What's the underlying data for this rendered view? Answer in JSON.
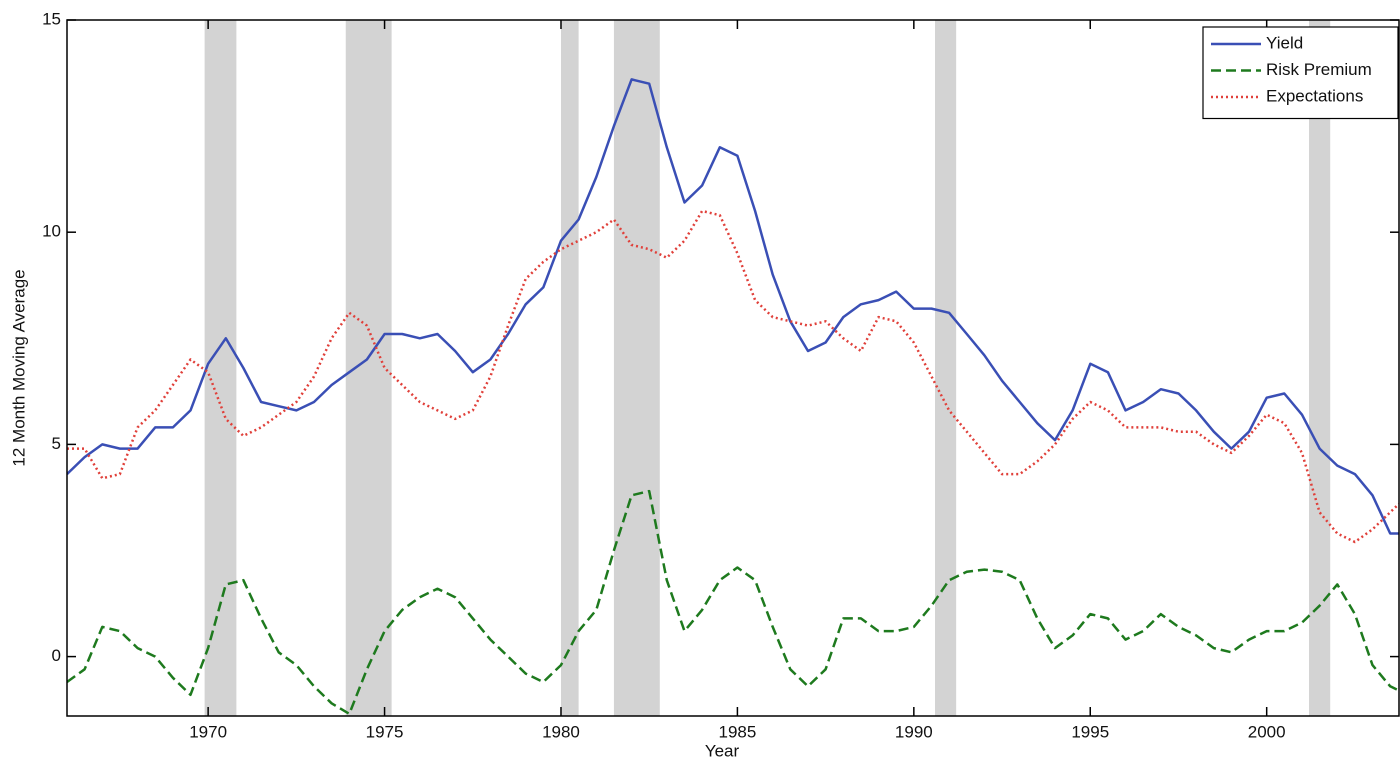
{
  "chart_data": {
    "type": "line",
    "xlabel": "Year",
    "ylabel": "12 Month Moving Average",
    "xlim": [
      1966,
      2003.75
    ],
    "ylim": [
      -1.4,
      15
    ],
    "xticks": [
      1970,
      1975,
      1980,
      1985,
      1990,
      1995,
      2000
    ],
    "yticks": [
      0,
      5,
      10,
      15
    ],
    "legend": "northeast",
    "shaded_periods": [
      [
        1969.9,
        1970.8
      ],
      [
        1973.9,
        1975.2
      ],
      [
        1980.0,
        1980.5
      ],
      [
        1981.5,
        1982.8
      ],
      [
        1990.6,
        1991.2
      ],
      [
        2001.2,
        2001.8
      ]
    ],
    "shade_color": "#d3d3d3",
    "x": [
      1966,
      1966.5,
      1967,
      1967.5,
      1968,
      1968.5,
      1969,
      1969.5,
      1970,
      1970.5,
      1971,
      1971.5,
      1972,
      1972.5,
      1973,
      1973.5,
      1974,
      1974.5,
      1975,
      1975.5,
      1976,
      1976.5,
      1977,
      1977.5,
      1978,
      1978.5,
      1979,
      1979.5,
      1980,
      1980.5,
      1981,
      1981.5,
      1982,
      1982.5,
      1983,
      1983.5,
      1984,
      1984.5,
      1985,
      1985.5,
      1986,
      1986.5,
      1987,
      1987.5,
      1988,
      1988.5,
      1989,
      1989.5,
      1990,
      1990.5,
      1991,
      1991.5,
      1992,
      1992.5,
      1993,
      1993.5,
      1994,
      1994.5,
      1995,
      1995.5,
      1996,
      1996.5,
      1997,
      1997.5,
      1998,
      1998.5,
      1999,
      1999.5,
      2000,
      2000.5,
      2001,
      2001.5,
      2002,
      2002.5,
      2003,
      2003.5,
      2003.75
    ],
    "series": [
      {
        "name": "Yield",
        "color": "#3a4fb5",
        "dash": "solid",
        "values": [
          4.3,
          4.7,
          5.0,
          4.9,
          4.9,
          5.4,
          5.4,
          5.8,
          6.9,
          7.5,
          6.8,
          6.0,
          5.9,
          5.8,
          6.0,
          6.4,
          6.7,
          7.0,
          7.6,
          7.6,
          7.5,
          7.6,
          7.2,
          6.7,
          7.0,
          7.6,
          8.3,
          8.7,
          9.8,
          10.3,
          11.3,
          12.5,
          13.6,
          13.5,
          12.0,
          10.7,
          11.1,
          12.0,
          11.8,
          10.5,
          9.0,
          7.9,
          7.2,
          7.4,
          8.0,
          8.3,
          8.4,
          8.6,
          8.2,
          8.2,
          8.1,
          7.6,
          7.1,
          6.5,
          6.0,
          5.5,
          5.1,
          5.8,
          6.9,
          6.7,
          5.8,
          6.0,
          6.3,
          6.2,
          5.8,
          5.3,
          4.9,
          5.3,
          6.1,
          6.2,
          5.7,
          4.9,
          4.5,
          4.3,
          3.8,
          2.9,
          2.9
        ]
      },
      {
        "name": "Risk Premium",
        "color": "#1e7a1e",
        "dash": "dashed",
        "values": [
          -0.6,
          -0.3,
          0.7,
          0.6,
          0.2,
          0.0,
          -0.5,
          -0.9,
          0.2,
          1.7,
          1.8,
          0.9,
          0.1,
          -0.2,
          -0.7,
          -1.1,
          -1.35,
          -0.3,
          0.6,
          1.1,
          1.4,
          1.6,
          1.4,
          0.9,
          0.4,
          0.0,
          -0.4,
          -0.6,
          -0.2,
          0.6,
          1.1,
          2.5,
          3.8,
          3.9,
          1.8,
          0.6,
          1.1,
          1.8,
          2.1,
          1.8,
          0.7,
          -0.3,
          -0.7,
          -0.3,
          0.9,
          0.9,
          0.6,
          0.6,
          0.7,
          1.2,
          1.8,
          2.0,
          2.05,
          2.0,
          1.8,
          0.9,
          0.2,
          0.5,
          1.0,
          0.9,
          0.4,
          0.6,
          1.0,
          0.7,
          0.5,
          0.2,
          0.1,
          0.4,
          0.6,
          0.6,
          0.8,
          1.2,
          1.7,
          1.0,
          -0.2,
          -0.7,
          -0.8
        ]
      },
      {
        "name": "Expectations",
        "color": "#e0403a",
        "dash": "dotted",
        "values": [
          4.9,
          4.9,
          4.2,
          4.3,
          5.4,
          5.8,
          6.4,
          7.0,
          6.7,
          5.6,
          5.2,
          5.4,
          5.7,
          6.0,
          6.6,
          7.5,
          8.1,
          7.8,
          6.8,
          6.4,
          6.0,
          5.8,
          5.6,
          5.8,
          6.6,
          7.8,
          8.9,
          9.3,
          9.6,
          9.8,
          10.0,
          10.3,
          9.7,
          9.6,
          9.4,
          9.8,
          10.5,
          10.4,
          9.5,
          8.4,
          8.0,
          7.9,
          7.8,
          7.9,
          7.5,
          7.2,
          8.0,
          7.9,
          7.4,
          6.6,
          5.8,
          5.3,
          4.8,
          4.3,
          4.3,
          4.6,
          5.0,
          5.6,
          6.0,
          5.8,
          5.4,
          5.4,
          5.4,
          5.3,
          5.3,
          5.0,
          4.8,
          5.2,
          5.7,
          5.5,
          4.8,
          3.4,
          2.9,
          2.7,
          3.0,
          3.4,
          3.6
        ]
      }
    ]
  }
}
